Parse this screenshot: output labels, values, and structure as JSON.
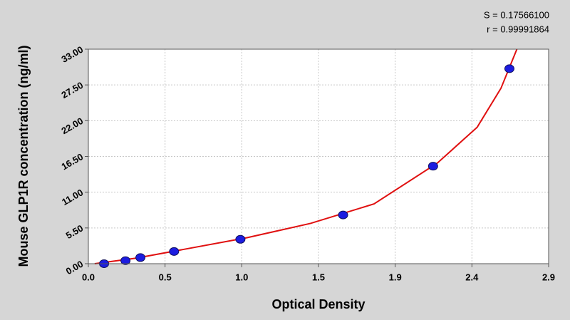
{
  "chart_data": {
    "type": "scatter",
    "x_label": "Optical Density",
    "y_label": "Mouse GLP1R concentration (ng/ml)",
    "annotations": [
      "S = 0.17566100",
      "r = 0.99991864"
    ],
    "xlim": [
      0,
      2.9
    ],
    "xticks": [
      {
        "value": 0,
        "label": "0.0"
      },
      {
        "value": 0.4833,
        "label": "0.5"
      },
      {
        "value": 0.9667,
        "label": "1.0"
      },
      {
        "value": 1.45,
        "label": "1.5"
      },
      {
        "value": 1.9333,
        "label": "1.9"
      },
      {
        "value": 2.4167,
        "label": "2.4"
      },
      {
        "value": 2.9,
        "label": "2.9"
      }
    ],
    "ylim": [
      0,
      33
    ],
    "yticks": [
      {
        "value": 0,
        "label": "0.00"
      },
      {
        "value": 5.5,
        "label": "5.50"
      },
      {
        "value": 11,
        "label": "11.00"
      },
      {
        "value": 16.5,
        "label": "16.50"
      },
      {
        "value": 22,
        "label": "22.00"
      },
      {
        "value": 27.5,
        "label": "27.50"
      },
      {
        "value": 33,
        "label": "33.00"
      }
    ],
    "grid": true,
    "series": [
      {
        "type": "line",
        "color": "#e01010",
        "x": [
          0.04,
          0.3,
          0.6,
          1.0,
          1.4,
          1.8,
          2.2,
          2.45,
          2.6,
          2.7
        ],
        "values": [
          0,
          0.85,
          2.2,
          4.0,
          6.2,
          9.2,
          15.5,
          21,
          27,
          33
        ]
      },
      {
        "type": "scatter",
        "color": "#1c1ce0",
        "x": [
          0.099,
          0.234,
          0.328,
          0.54,
          0.958,
          1.605,
          2.172,
          2.653
        ],
        "values": [
          0,
          0.47,
          0.94,
          1.88,
          3.75,
          7.5,
          15,
          30
        ]
      }
    ]
  }
}
